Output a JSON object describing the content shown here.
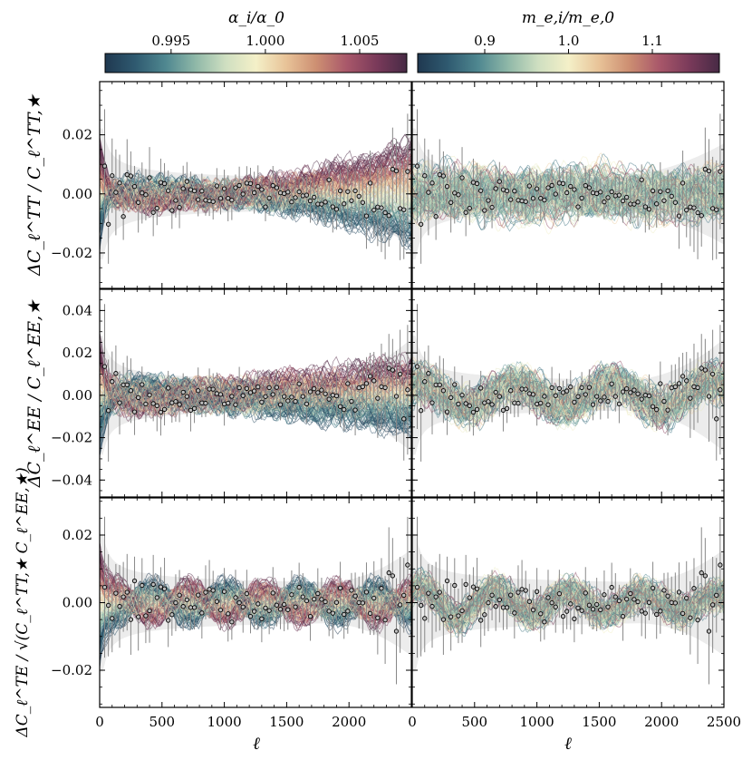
{
  "chart_data": [
    {
      "type": "colorbar",
      "label": "α_i/α_0",
      "range": [
        0.9915,
        1.0075
      ],
      "tick_labels": [
        "0.995",
        "1.000",
        "1.005"
      ],
      "tick_values": [
        0.995,
        1.0,
        1.005
      ]
    },
    {
      "type": "colorbar",
      "label": "m_e,i/m_e,0",
      "range": [
        0.82,
        1.18
      ],
      "tick_labels": [
        "0.9",
        "1.0",
        "1.1"
      ],
      "tick_values": [
        0.9,
        1.0,
        1.1
      ]
    },
    {
      "type": "line",
      "panel": "TT-alpha",
      "ylabel": "ΔC_ℓ^TT / C_ℓ^TT,★",
      "xlim": [
        0,
        2500
      ],
      "ylim": [
        -0.032,
        0.038
      ],
      "yticks": [
        -0.02,
        0.0,
        0.02
      ],
      "ytick_labels": [
        "−0.02",
        "0.00",
        "0.02"
      ],
      "varied_parameter": "alpha",
      "envelope": "cosmic variance band",
      "data_points": "binned residuals with error bars"
    },
    {
      "type": "line",
      "panel": "TT-me",
      "xlim": [
        0,
        2500
      ],
      "ylim": [
        -0.032,
        0.038
      ],
      "varied_parameter": "electron mass",
      "envelope": "cosmic variance band",
      "data_points": "binned residuals with error bars"
    },
    {
      "type": "line",
      "panel": "EE-alpha",
      "ylabel": "ΔC_ℓ^EE / C_ℓ^EE,★",
      "xlim": [
        0,
        2500
      ],
      "ylim": [
        -0.048,
        0.05
      ],
      "yticks": [
        -0.04,
        -0.02,
        0.0,
        0.02,
        0.04
      ],
      "ytick_labels": [
        "−0.04",
        "−0.02",
        "0.00",
        "0.02",
        "0.04"
      ],
      "varied_parameter": "alpha"
    },
    {
      "type": "line",
      "panel": "EE-me",
      "xlim": [
        0,
        2500
      ],
      "ylim": [
        -0.048,
        0.05
      ],
      "varied_parameter": "electron mass"
    },
    {
      "type": "line",
      "panel": "TE-alpha",
      "ylabel": "ΔC_ℓ^TE / √(C_ℓ^TT,★ C_ℓ^EE,★)",
      "xlabel": "ℓ",
      "xlim": [
        0,
        2500
      ],
      "ylim": [
        -0.031,
        0.031
      ],
      "yticks": [
        -0.02,
        0.0,
        0.02
      ],
      "ytick_labels": [
        "−0.02",
        "0.00",
        "0.02"
      ],
      "xticks": [
        0,
        500,
        1000,
        1500,
        2000
      ],
      "xtick_labels": [
        "0",
        "500",
        "1000",
        "1500",
        "2000"
      ],
      "varied_parameter": "alpha"
    },
    {
      "type": "line",
      "panel": "TE-me",
      "xlabel": "ℓ",
      "xlim": [
        0,
        2500
      ],
      "ylim": [
        -0.031,
        0.031
      ],
      "xticks": [
        0,
        500,
        1000,
        1500,
        2000,
        2500
      ],
      "xtick_labels": [
        "0",
        "500",
        "1000",
        "1500",
        "2000",
        "2500"
      ],
      "varied_parameter": "electron mass"
    }
  ],
  "colors": {
    "cmap": [
      "#1f3850",
      "#2f5a70",
      "#4f8790",
      "#8fb8a8",
      "#cfdfc1",
      "#f4f0c8",
      "#e8c398",
      "#cd8f72",
      "#a9586a",
      "#7a3a5a",
      "#472a45"
    ],
    "band": "#ececec",
    "points": "#bbbbbb",
    "point_edge": "#000000",
    "errorbar": "#888888"
  }
}
